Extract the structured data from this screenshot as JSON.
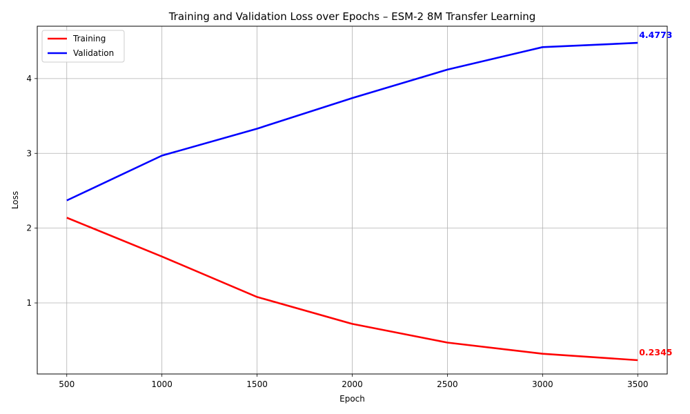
{
  "chart_data": {
    "type": "line",
    "title": "Training and Validation Loss over Epochs – ESM-2 8M Transfer Learning",
    "xlabel": "Epoch",
    "ylabel": "Loss",
    "x": [
      500,
      1000,
      1500,
      2000,
      2500,
      3000,
      3500
    ],
    "xlim": [
      345,
      3655
    ],
    "ylim": [
      0.05,
      4.7
    ],
    "xticks": [
      500,
      1000,
      1500,
      2000,
      2500,
      3000,
      3500
    ],
    "yticks": [
      1,
      2,
      3,
      4
    ],
    "grid": true,
    "legend_position": "top-left",
    "series": [
      {
        "name": "Training",
        "color": "#ff0000",
        "values": [
          2.14,
          1.62,
          1.08,
          0.72,
          0.47,
          0.32,
          0.2345
        ],
        "end_label": "0.2345"
      },
      {
        "name": "Validation",
        "color": "#0000ff",
        "values": [
          2.37,
          2.97,
          3.33,
          3.74,
          4.12,
          4.42,
          4.4773
        ],
        "end_label": "4.4773"
      }
    ]
  }
}
